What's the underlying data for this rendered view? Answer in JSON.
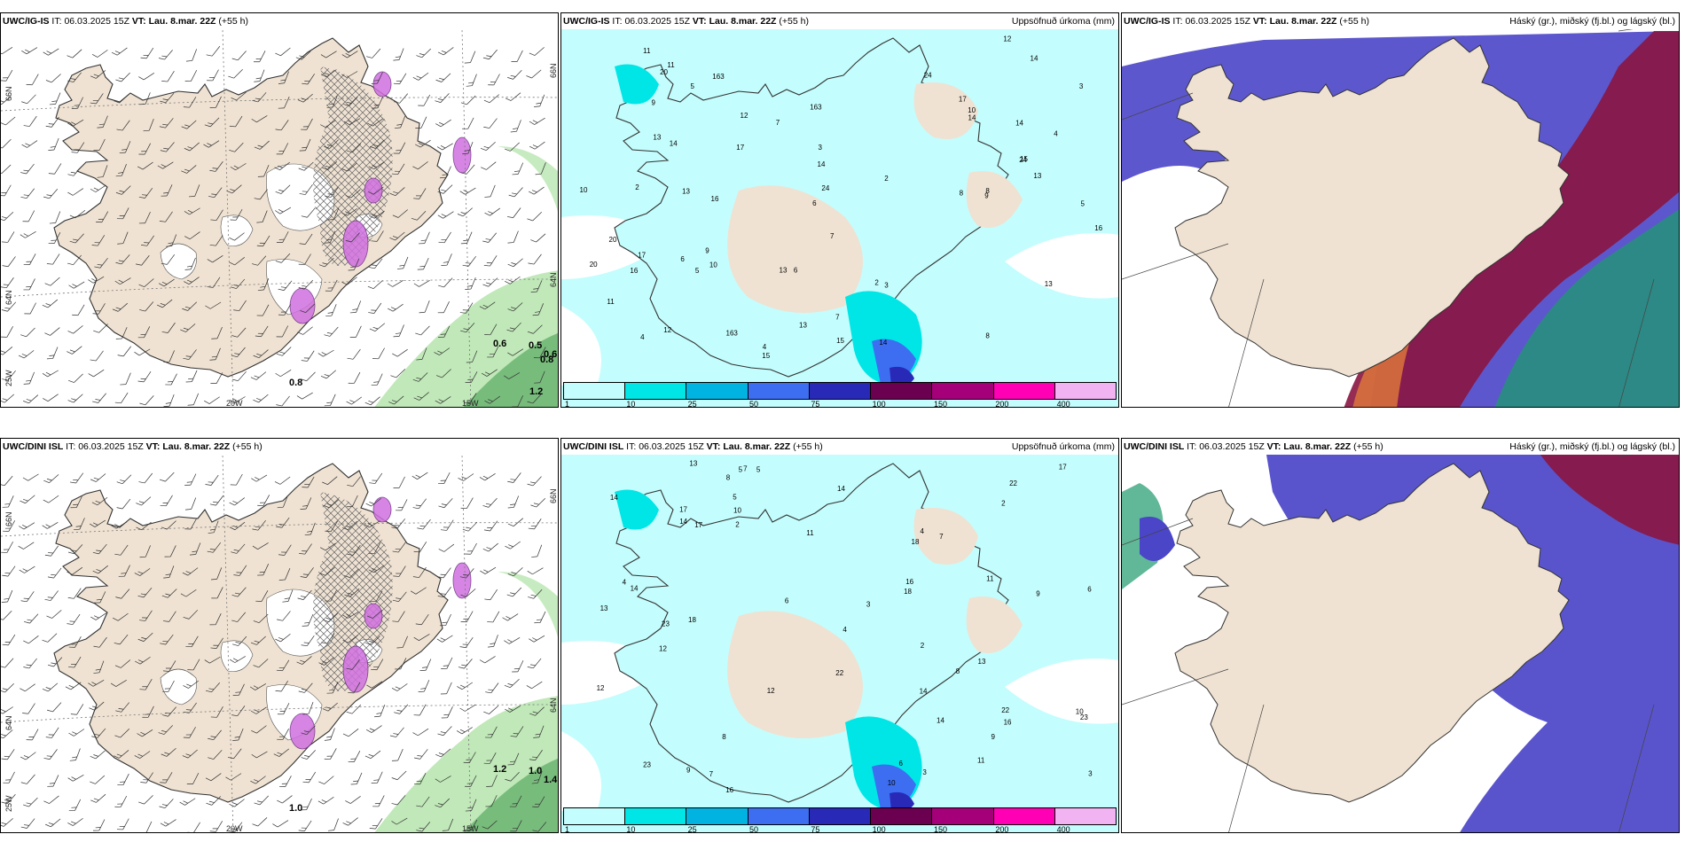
{
  "panels": [
    {
      "id": "p1",
      "type": "wind",
      "model": "UWC/IG-IS",
      "it_label": "IT:",
      "it": "06.03.2025 15Z",
      "vt_label": "VT:",
      "vt": "Lau. 8.mar. 22Z",
      "lead": "(+55 h)",
      "right_title": "",
      "ticks": {
        "lat_left_1": "66N",
        "lat_left_2": "64N",
        "lat_left_3": "25W",
        "lat_right_1": "66N",
        "lat_right_2": "64N",
        "lon_1": "20W",
        "lon_2": "15W"
      },
      "values": [
        "0.6",
        "0.5",
        "0.6",
        "0.8",
        "1.2",
        "0.8"
      ]
    },
    {
      "id": "p2",
      "type": "precip",
      "model": "UWC/IG-IS",
      "it_label": "IT:",
      "it": "06.03.2025 15Z",
      "vt_label": "VT:",
      "vt": "Lau. 8.mar. 22Z",
      "lead": "(+55 h)",
      "right_title": "Uppsöfnuð úrkoma (mm)",
      "colorbar": {
        "labels": [
          "1",
          "10",
          "25",
          "50",
          "75",
          "100",
          "150",
          "200",
          "400"
        ],
        "colors": [
          "#c4fdfd",
          "#00e6e6",
          "#00b3e0",
          "#3d6ef2",
          "#2929b8",
          "#6b0050",
          "#a5007a",
          "#ff00b4",
          "#f2b3f2"
        ]
      },
      "values": [
        "8",
        "7",
        "6",
        "5",
        "4",
        "3",
        "2",
        "9",
        "13",
        "14",
        "15",
        "17",
        "20",
        "24",
        "16",
        "11",
        "10",
        "12",
        "13",
        "14",
        "163"
      ]
    },
    {
      "id": "p3",
      "type": "cloud",
      "model": "UWC/IG-IS",
      "it_label": "IT:",
      "it": "06.03.2025 15Z",
      "vt_label": "VT:",
      "vt": "Lau. 8.mar. 22Z",
      "lead": "(+55 h)",
      "right_title": "Háský (gr.), miðský (fj.bl.) og lágský (bl.)"
    },
    {
      "id": "p4",
      "type": "wind",
      "model": "UWC/DINI ISL",
      "it_label": "IT:",
      "it": "06.03.2025 15Z",
      "vt_label": "VT:",
      "vt": "Lau. 8.mar. 22Z",
      "lead": "(+55 h)",
      "right_title": "",
      "ticks": {
        "lat_left_1": "66N",
        "lat_left_2": "64N",
        "lat_left_3": "25W",
        "lat_right_1": "66N",
        "lat_right_2": "64N",
        "lon_1": "20W",
        "lon_2": "15W"
      },
      "values": [
        "1.2",
        "1.0",
        "1.4",
        "1.0"
      ]
    },
    {
      "id": "p5",
      "type": "precip",
      "model": "UWC/DINI ISL",
      "it_label": "IT:",
      "it": "06.03.2025 15Z",
      "vt_label": "VT:",
      "vt": "Lau. 8.mar. 22Z",
      "lead": "(+55 h)",
      "right_title": "Uppsöfnuð úrkoma (mm)",
      "colorbar": {
        "labels": [
          "1",
          "10",
          "25",
          "50",
          "75",
          "100",
          "150",
          "200",
          "400"
        ],
        "colors": [
          "#c4fdfd",
          "#00e6e6",
          "#00b3e0",
          "#3d6ef2",
          "#2929b8",
          "#6b0050",
          "#a5007a",
          "#ff00b4",
          "#f2b3f2"
        ]
      },
      "values": [
        "11",
        "14",
        "16",
        "12",
        "13",
        "22",
        "9",
        "7",
        "8",
        "5",
        "4",
        "3",
        "2",
        "6",
        "10",
        "17",
        "18",
        "23",
        "14"
      ]
    },
    {
      "id": "p6",
      "type": "cloud",
      "model": "UWC/DINI ISL",
      "it_label": "IT:",
      "it": "06.03.2025 15Z",
      "vt_label": "VT:",
      "vt": "Lau. 8.mar. 22Z",
      "lead": "(+55 h)",
      "right_title": "Háský (gr.), miðský (fj.bl.) og lágský (bl.)"
    }
  ],
  "colors": {
    "land": "#efe2d2",
    "coast": "#333333",
    "precip_light": "#c4fdfd",
    "precip_mid": "#00e6e6",
    "precip_heavy": "#2929b8",
    "wind_green": "#b9e6b0",
    "wind_green_dark": "#2f8f3f",
    "snow_magenta": "#d070e0",
    "cloud_high_red": "#8a1540",
    "cloud_mid_blue": "#4b45c8",
    "cloud_low_green": "#1d9a6c",
    "cloud_orange": "#e07a3a"
  }
}
